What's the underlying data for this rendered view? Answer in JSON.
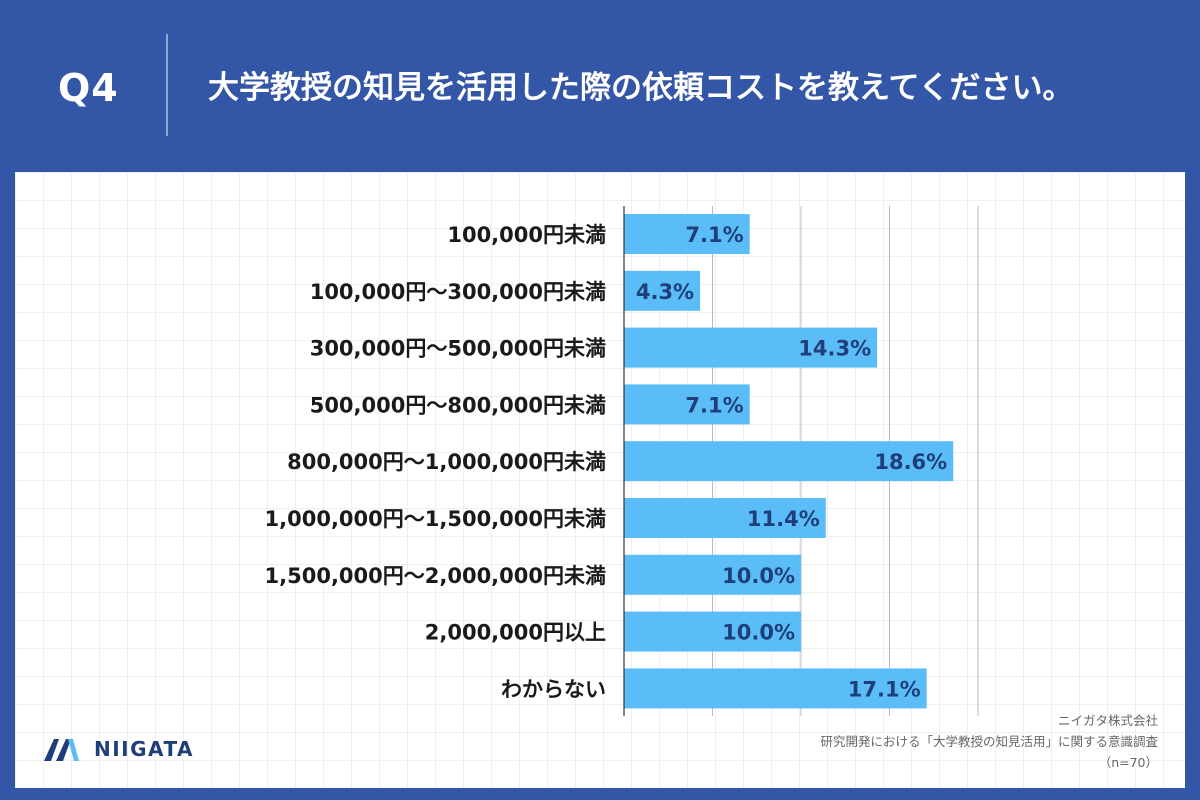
{
  "header": {
    "question": "Q4",
    "title": "大学教授の知見を活用した際の依頼コストを教えてください。"
  },
  "chart_data": {
    "type": "bar",
    "orientation": "horizontal",
    "categories": [
      "100,000円未満",
      "100,000円～300,000円未満",
      "300,000円～500,000円未満",
      "500,000円～800,000円未満",
      "800,000円～1,000,000円未満",
      "1,000,000円～1,500,000円未満",
      "1,500,000円～2,000,000円未満",
      "2,000,000円以上",
      "わからない"
    ],
    "values": [
      7.1,
      4.3,
      14.3,
      7.1,
      18.6,
      11.4,
      10.0,
      10.0,
      17.1
    ],
    "value_labels": [
      "7.1%",
      "4.3%",
      "14.3%",
      "7.1%",
      "18.6%",
      "11.4%",
      "10.0%",
      "10.0%",
      "17.1%"
    ],
    "xlim": [
      0,
      25
    ],
    "grid": "vertical",
    "bar_color": "#5bbdf8"
  },
  "logo": {
    "text": "NIIGATA"
  },
  "footer": {
    "company": "ニイガタ株式会社",
    "survey": "研究開発における「大学教授の知見活用」に関する意識調査",
    "sample": "（n=70）"
  },
  "colors": {
    "background": "#3456a6",
    "accent": "#1f3f7a",
    "bar": "#5bbdf8"
  }
}
